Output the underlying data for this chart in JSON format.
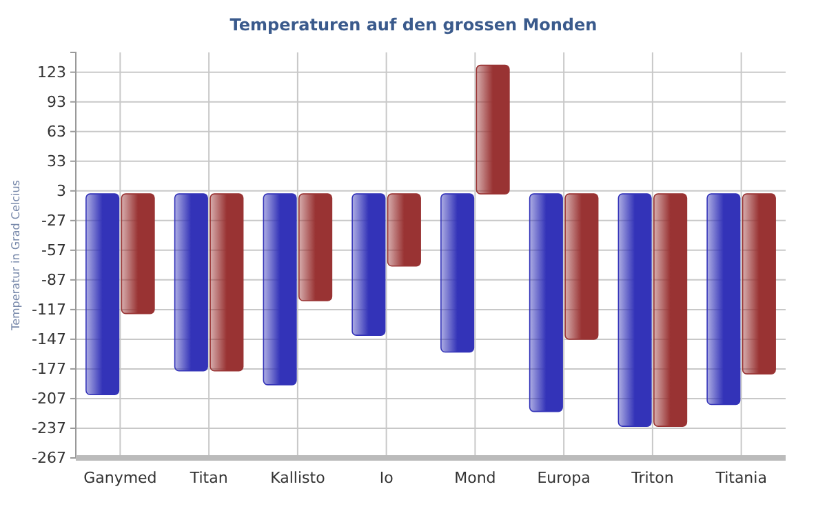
{
  "chart_data": {
    "type": "bar",
    "title": "Temperaturen auf den grossen Monden",
    "ylabel": "Temperatur in Grad Celcius",
    "categories": [
      "Ganymed",
      "Titan",
      "Kallisto",
      "Io",
      "Mond",
      "Europa",
      "Triton",
      "Titania"
    ],
    "series": [
      {
        "color": "#3333b8",
        "values": [
          -203,
          -179,
          -193,
          -143,
          -160,
          -220,
          -235,
          -213
        ]
      },
      {
        "color": "#993333",
        "values": [
          -121,
          -179,
          -108,
          -73,
          130,
          -147,
          -235,
          -182
        ]
      }
    ],
    "ylim": [
      -267,
      143
    ],
    "yticks": [
      123,
      93,
      63,
      33,
      3,
      -27,
      -57,
      -87,
      -117,
      -147,
      -177,
      -207,
      -237,
      -267
    ],
    "grid": true
  }
}
